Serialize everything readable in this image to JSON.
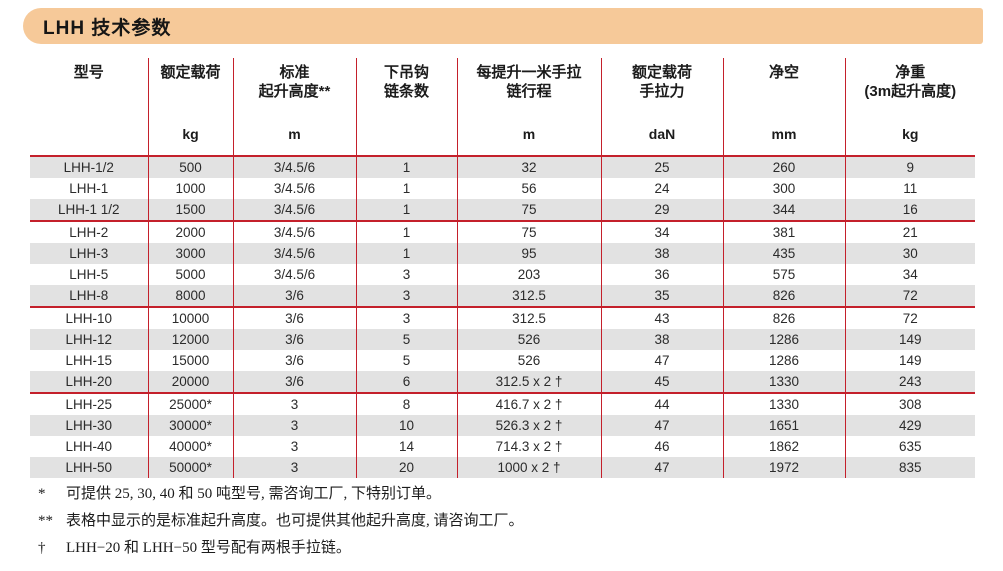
{
  "page_title": "LHH 技术参数",
  "colors": {
    "title_bar_background": "#f6c999",
    "table_line_red": "#c4202b",
    "shaded_row_gray": "#e2e2e2",
    "text": "#232323"
  },
  "table": {
    "columns": [
      {
        "label_lines": [
          "型号"
        ],
        "unit": ""
      },
      {
        "label_lines": [
          "额定载荷"
        ],
        "unit": "kg"
      },
      {
        "label_lines": [
          "标准",
          "起升高度**"
        ],
        "unit": "m"
      },
      {
        "label_lines": [
          "下吊钩",
          "链条数"
        ],
        "unit": ""
      },
      {
        "label_lines": [
          "每提升一米手拉",
          "链行程"
        ],
        "unit": "m"
      },
      {
        "label_lines": [
          "额定载荷",
          "手拉力"
        ],
        "unit": "daN"
      },
      {
        "label_lines": [
          "净空"
        ],
        "unit": "mm"
      },
      {
        "label_lines": [
          "净重",
          "(3m起升高度)"
        ],
        "unit": "kg"
      }
    ],
    "groups": [
      [
        [
          "LHH-1/2",
          "500",
          "3/4.5/6",
          "1",
          "32",
          "25",
          "260",
          "9"
        ],
        [
          "LHH-1",
          "1000",
          "3/4.5/6",
          "1",
          "56",
          "24",
          "300",
          "11"
        ],
        [
          "LHH-1 1/2",
          "1500",
          "3/4.5/6",
          "1",
          "75",
          "29",
          "344",
          "16"
        ]
      ],
      [
        [
          "LHH-2",
          "2000",
          "3/4.5/6",
          "1",
          "75",
          "34",
          "381",
          "21"
        ],
        [
          "LHH-3",
          "3000",
          "3/4.5/6",
          "1",
          "95",
          "38",
          "435",
          "30"
        ],
        [
          "LHH-5",
          "5000",
          "3/4.5/6",
          "3",
          "203",
          "36",
          "575",
          "34"
        ],
        [
          "LHH-8",
          "8000",
          "3/6",
          "3",
          "312.5",
          "35",
          "826",
          "72"
        ]
      ],
      [
        [
          "LHH-10",
          "10000",
          "3/6",
          "3",
          "312.5",
          "43",
          "826",
          "72"
        ],
        [
          "LHH-12",
          "12000",
          "3/6",
          "5",
          "526",
          "38",
          "1286",
          "149"
        ],
        [
          "LHH-15",
          "15000",
          "3/6",
          "5",
          "526",
          "47",
          "1286",
          "149"
        ],
        [
          "LHH-20",
          "20000",
          "3/6",
          "6",
          "312.5 x 2 †",
          "45",
          "1330",
          "243"
        ]
      ],
      [
        [
          "LHH-25",
          "25000*",
          "3",
          "8",
          "416.7 x 2 †",
          "44",
          "1330",
          "308"
        ],
        [
          "LHH-30",
          "30000*",
          "3",
          "10",
          "526.3 x 2 †",
          "47",
          "1651",
          "429"
        ],
        [
          "LHH-40",
          "40000*",
          "3",
          "14",
          "714.3 x 2 †",
          "46",
          "1862",
          "635"
        ],
        [
          "LHH-50",
          "50000*",
          "3",
          "20",
          "1000 x 2 †",
          "47",
          "1972",
          "835"
        ]
      ]
    ]
  },
  "footnotes": [
    {
      "marker": "*",
      "text": "可提供 25, 30, 40 和 50 吨型号, 需咨询工厂, 下特别订单。"
    },
    {
      "marker": "**",
      "text": "表格中显示的是标准起升高度。也可提供其他起升高度, 请咨询工厂。"
    },
    {
      "marker": "†",
      "text": "LHH−20 和 LHH−50 型号配有两根手拉链。"
    }
  ]
}
